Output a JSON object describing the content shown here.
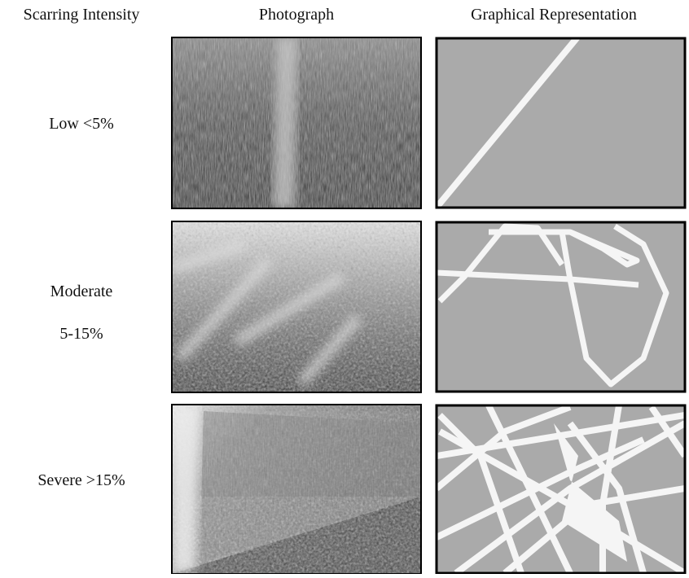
{
  "header": [
    "Scarring Intensity",
    "Photograph",
    "Graphical Representation"
  ],
  "rows": [
    {
      "label": [
        "Low <5%"
      ]
    },
    {
      "label": [
        "Moderate",
        "5-15%"
      ]
    },
    {
      "label": [
        "Severe >15%"
      ]
    }
  ]
}
